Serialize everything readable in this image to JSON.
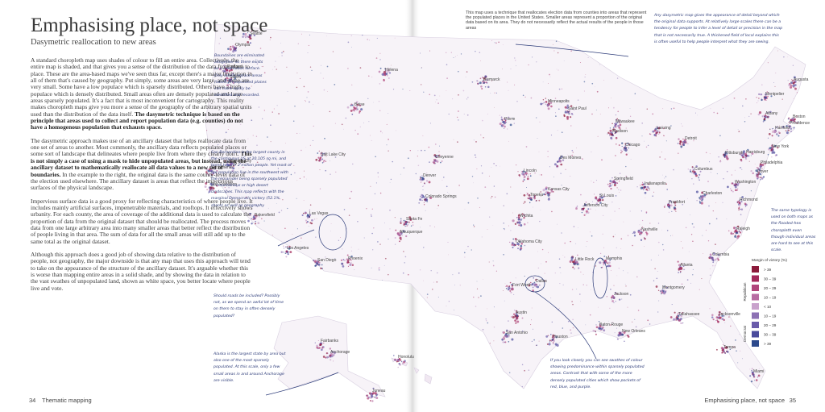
{
  "left_page": {
    "title": "Emphasising place, not space",
    "subtitle": "Dasymetric reallocation to new areas",
    "paragraphs": [
      [
        {
          "text": "A standard choropleth map uses shades of colour to fill an entire area. Collectively, the entire map is shaded, and that gives you a sense of the distribution of the data from place to place. These are the area-based maps we've seen thus far, except there's a major limitation in all of them that's caused by geography. Put simply, some areas are very large, and some are very small. Some have a low populace which is sparsely distributed. Others have a high populace which is densely distributed. Small areas often are densely populated and large areas sparsely populated. It's a fact that is most inconvenient for cartography. This reality makes choropleth maps give you more a sense of the geography of the arbitrary spatial units used than the distribution of the data itself.",
          "bold": false
        },
        {
          "text": "The dasymetric technique is based on the principle that areas used to collect and report population data (e.g. counties) do not have a homogenous population that exhausts space.",
          "bold": true
        }
      ],
      [
        {
          "text": "The dasymetric approach makes use of an ancillary dataset that helps reallocate data from one set of areas to another. Most commonly, the ancillary data reflects populated places or some sort of landscape that delineates where people live from where they clearly don't.",
          "bold": false
        },
        {
          "text": "This is not simply a case of using a mask to hide unpopulated areas, but instead, using the ancillary dataset to mathematically reallocate all data values to a new set of boundaries.",
          "bold": true
        },
        {
          "text": "In the example to the right, the original data is the same county-level data of the election used elsewhere. The ancillary dataset is areas that reflect the impervious surfaces of the physical landscape.",
          "bold": false
        }
      ],
      [
        {
          "text": "Impervious surface data is a good proxy for reflecting characteristics of where people live. It includes mainly artificial surfaces, impenetrable materials, and rooftops. It effectively shows urbanity. For each county, the area of coverage of the additional data is used to calculate the proportion of data from the original dataset that should be reallocated. The process moves data from one large arbitrary area into many smaller areas that better reflect the distribution of people living in that area. The sum of data for all the small areas will still add up to the same total as the original dataset.",
          "bold": false
        }
      ],
      [
        {
          "text": "Although this approach does a good job of showing data relative to the distribution of people, not geography, the major downside is that any map that uses this approach will tend to take on the appearance of the structure of the ancillary dataset. It's arguable whether this is worse than mapping entire areas in a solid shade, and by showing the data in relation to the vast swathes of unpopulated land, shown as white space, you better locate where people live and vote.",
          "bold": false
        }
      ]
    ],
    "footer": {
      "page_number": "34",
      "section": "Thematic mapping"
    }
  },
  "right_page": {
    "footer": {
      "section": "Emphasising place, not space",
      "page_number": "35"
    }
  },
  "map": {
    "intro": "This map uses a technique that reallocates election data from counties into areas that represent the populated places in the United States. Smaller areas represent a proportion of the original data based on its area. They do not necessarily reflect the actual results of the people in those areas",
    "annotations": [
      "Boundaries are eliminated altogether so there exists as a continuous surface. Only labels replace areas (labels on populated places can more easily be identified and recorded.",
      "San Bernardino is the largest county in the contiguous US at 20,105 sq mi, and home to over 2 million people. Yet most of the population live in the southwest with the remainder being sparsely populated in mountainous or high desert landscapes. This map reflects with the marginal Democratic victory (52.1% share) as well as geography",
      "Should roads be included? Possibly not, as we spend an awful lot of time on them to stay in often densely populated?",
      "Alaska is the largest state by area but also one of the most sparsely populated. At this scale, only a few small areas in and around Anchorage are visible.",
      "Any dasymetric map gives the appearance of detail beyond which the original data supports. At relatively large scales there can be a tendency for people to infer a level of detail or precision in the map that is not necessarily true. A thickened field of local explains this is often useful to help people interpret what they are seeing.",
      "The same typology is used on both maps as the flooded-hex choropleth even though individual areas are hard to see at this scale.",
      "If you look closely you can see swathes of colour showing predominance within sparsely populated areas. Contrast that with some of the more densely populated cities which show pockets of red, blue, and purple."
    ],
    "cities": [
      "Olympia",
      "Seattle",
      "Portland",
      "Salem",
      "Helena",
      "Boise",
      "Bismarck",
      "Pierre",
      "Minneapolis",
      "Saint Paul",
      "Madison",
      "Milwaukee",
      "Chicago",
      "Lansing",
      "Detroit",
      "Cheyenne",
      "Salt Lake City",
      "Carson City",
      "Sacramento",
      "San Francisco",
      "Denver",
      "Lincoln",
      "Des Moines",
      "Springfield",
      "Indianapolis",
      "Columbus",
      "Pittsburgh",
      "Harrisburg",
      "New York",
      "Albany",
      "Montpelier",
      "Augusta",
      "Boston",
      "Providence",
      "Hartford",
      "Philadelphia",
      "Dover",
      "Washington",
      "Richmond",
      "Charleston",
      "Frankfort",
      "Nashville",
      "Raleigh",
      "Topeka",
      "Kansas City",
      "Jefferson City",
      "St Louis",
      "Colorado Springs",
      "Wichita",
      "Oklahoma City",
      "Santa Fe",
      "Albuquerque",
      "Phoenix",
      "Las Vegas",
      "Bakersfield",
      "Los Angeles",
      "San Diego",
      "Little Rock",
      "Memphis",
      "Dallas",
      "Fort Worth",
      "Jackson",
      "Montgomery",
      "Atlanta",
      "Columbia",
      "Austin",
      "Houston",
      "San Antonio",
      "Baton Rouge",
      "New Orleans",
      "Tallahassee",
      "Jacksonville",
      "Tampa",
      "Miami",
      "Honolulu",
      "Fairbanks",
      "Anchorage",
      "Juneau"
    ],
    "legend": {
      "title": "Margin of victory (%)",
      "entries": [
        {
          "label": "> 39",
          "color": "#8b1a3a"
        },
        {
          "label": "30 – 39",
          "color": "#a3285a"
        },
        {
          "label": "20 – 29",
          "color": "#b0447a"
        },
        {
          "label": "10 – 19",
          "color": "#b86ca2"
        },
        {
          "label": "< 10",
          "color": "#c9a2cc"
        },
        {
          "label": "10 – 19",
          "color": "#8d72b4"
        },
        {
          "label": "20 – 29",
          "color": "#6a5caa"
        },
        {
          "label": "30 – 39",
          "color": "#4a4b9c"
        },
        {
          "label": "> 39",
          "color": "#2c4a8c"
        }
      ],
      "groups": [
        "Republican",
        "Democrat"
      ]
    }
  }
}
